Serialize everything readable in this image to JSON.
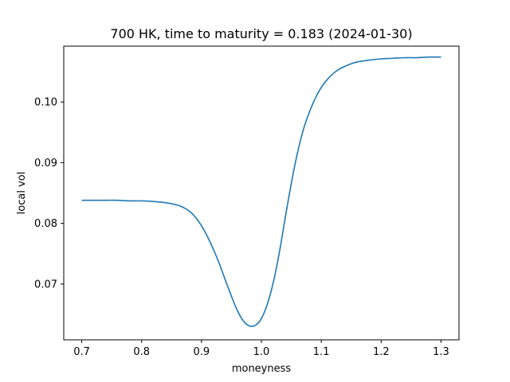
{
  "chart_data": {
    "type": "line",
    "title": "700 HK, time to maturity = 0.183 (2024-01-30)",
    "xlabel": "moneyness",
    "ylabel": "local vol",
    "xlim": [
      0.67,
      1.33
    ],
    "ylim": [
      0.0608,
      0.1092
    ],
    "xticks": [
      {
        "value": 0.7,
        "label": "0.7"
      },
      {
        "value": 0.8,
        "label": "0.8"
      },
      {
        "value": 0.9,
        "label": "0.9"
      },
      {
        "value": 1.0,
        "label": "1.0"
      },
      {
        "value": 1.1,
        "label": "1.1"
      },
      {
        "value": 1.2,
        "label": "1.2"
      },
      {
        "value": 1.3,
        "label": "1.3"
      }
    ],
    "yticks": [
      {
        "value": 0.07,
        "label": "0.07"
      },
      {
        "value": 0.08,
        "label": "0.08"
      },
      {
        "value": 0.09,
        "label": "0.09"
      },
      {
        "value": 0.1,
        "label": "0.10"
      }
    ],
    "grid": false,
    "series": [
      {
        "color": "#1f77b4",
        "x": [
          0.7,
          0.72,
          0.74,
          0.76,
          0.78,
          0.8,
          0.82,
          0.84,
          0.86,
          0.87,
          0.88,
          0.89,
          0.9,
          0.91,
          0.92,
          0.93,
          0.94,
          0.95,
          0.96,
          0.97,
          0.98,
          0.99,
          1.0,
          1.01,
          1.02,
          1.03,
          1.04,
          1.05,
          1.06,
          1.07,
          1.08,
          1.09,
          1.1,
          1.11,
          1.12,
          1.13,
          1.14,
          1.15,
          1.16,
          1.18,
          1.2,
          1.22,
          1.24,
          1.26,
          1.28,
          1.3
        ],
        "y": [
          0.0838,
          0.0838,
          0.0838,
          0.0838,
          0.0837,
          0.0837,
          0.0836,
          0.0834,
          0.083,
          0.0826,
          0.082,
          0.081,
          0.0796,
          0.0778,
          0.0757,
          0.0733,
          0.0706,
          0.068,
          0.0656,
          0.0639,
          0.0631,
          0.0632,
          0.0643,
          0.0667,
          0.0703,
          0.0752,
          0.081,
          0.0866,
          0.0915,
          0.0954,
          0.0983,
          0.1006,
          0.1024,
          0.1037,
          0.1047,
          0.1054,
          0.1059,
          0.1063,
          0.1066,
          0.1069,
          0.1071,
          0.1072,
          0.1073,
          0.1073,
          0.1074,
          0.1074
        ]
      }
    ]
  }
}
